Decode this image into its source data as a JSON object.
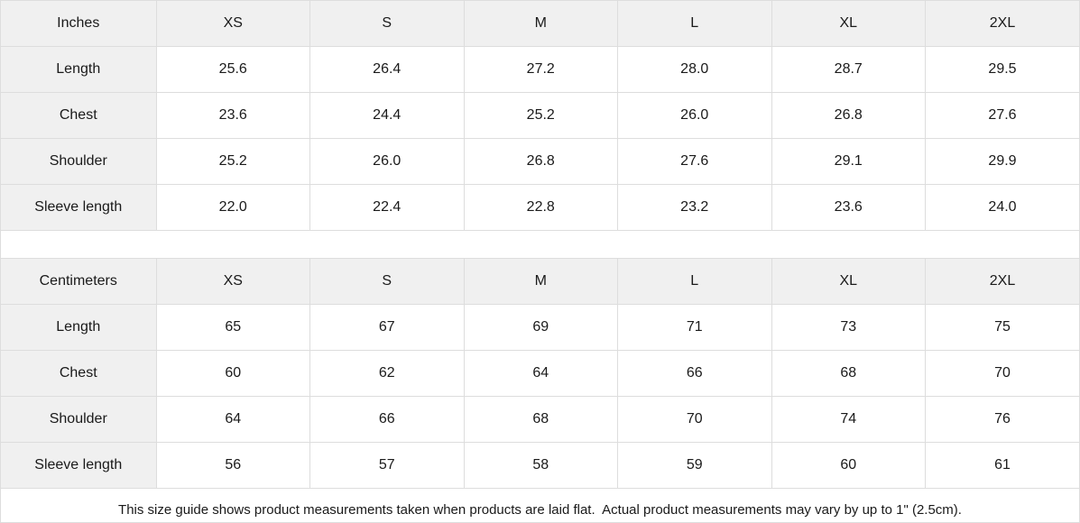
{
  "tables": [
    {
      "unit_label": "Inches",
      "sizes": [
        "XS",
        "S",
        "M",
        "L",
        "XL",
        "2XL"
      ],
      "rows": [
        {
          "label": "Length",
          "values": [
            "25.6",
            "26.4",
            "27.2",
            "28.0",
            "28.7",
            "29.5"
          ]
        },
        {
          "label": "Chest",
          "values": [
            "23.6",
            "24.4",
            "25.2",
            "26.0",
            "26.8",
            "27.6"
          ]
        },
        {
          "label": "Shoulder",
          "values": [
            "25.2",
            "26.0",
            "26.8",
            "27.6",
            "29.1",
            "29.9"
          ]
        },
        {
          "label": "Sleeve length",
          "values": [
            "22.0",
            "22.4",
            "22.8",
            "23.2",
            "23.6",
            "24.0"
          ]
        }
      ]
    },
    {
      "unit_label": "Centimeters",
      "sizes": [
        "XS",
        "S",
        "M",
        "L",
        "XL",
        "2XL"
      ],
      "rows": [
        {
          "label": "Length",
          "values": [
            "65",
            "67",
            "69",
            "71",
            "73",
            "75"
          ]
        },
        {
          "label": "Chest",
          "values": [
            "60",
            "62",
            "64",
            "66",
            "68",
            "70"
          ]
        },
        {
          "label": "Shoulder",
          "values": [
            "64",
            "66",
            "68",
            "70",
            "74",
            "76"
          ]
        },
        {
          "label": "Sleeve length",
          "values": [
            "56",
            "57",
            "58",
            "59",
            "60",
            "61"
          ]
        }
      ]
    }
  ],
  "footer": {
    "note": "This size guide shows product measurements taken when products are laid flat.  Actual product measurements may vary by up to 1\" (2.5cm)."
  },
  "colors": {
    "header_bg": "#f0f0f0",
    "border": "#dddddd",
    "text": "#1a1a1a",
    "background": "#ffffff"
  }
}
